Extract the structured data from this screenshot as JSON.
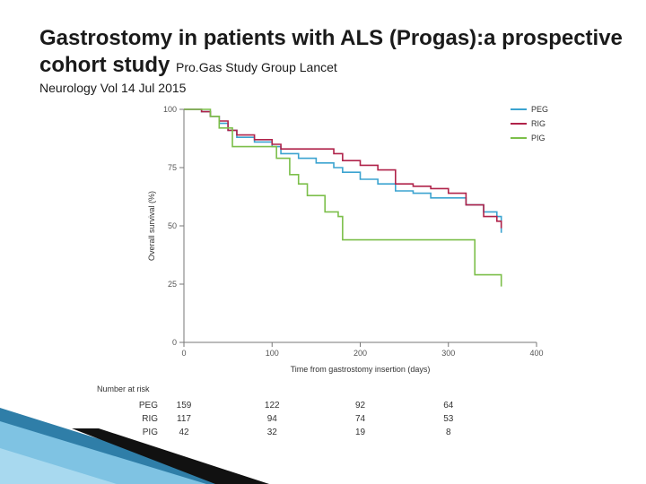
{
  "slide": {
    "title": "Gastrostomy in patients with ALS (Progas):a prospective cohort study",
    "citation_line1": "Pro.Gas Study Group Lancet",
    "citation_line2": "Neurology Vol 14 Jul 2015"
  },
  "chart_data": {
    "type": "line",
    "ylabel": "Overall survival (%)",
    "xlabel": "Time from gastrostomy insertion (days)",
    "xlim": [
      0,
      400
    ],
    "ylim": [
      0,
      100
    ],
    "xticks": [
      0,
      100,
      200,
      300,
      400
    ],
    "yticks": [
      0,
      25,
      50,
      75,
      100
    ],
    "legend_position": "top-right",
    "grid": false,
    "series": [
      {
        "name": "PEG",
        "color": "#3ba3d0",
        "x": [
          0,
          20,
          30,
          40,
          50,
          60,
          80,
          100,
          110,
          130,
          150,
          170,
          180,
          200,
          220,
          240,
          260,
          280,
          300,
          320,
          340,
          355,
          360
        ],
        "y": [
          100,
          99,
          97,
          94,
          91,
          88,
          86,
          84,
          81,
          79,
          77,
          75,
          73,
          70,
          68,
          65,
          64,
          62,
          62,
          59,
          56,
          54,
          47
        ]
      },
      {
        "name": "RIG",
        "color": "#b0234a",
        "x": [
          0,
          20,
          30,
          40,
          50,
          60,
          80,
          100,
          110,
          130,
          150,
          170,
          180,
          200,
          220,
          240,
          260,
          280,
          300,
          320,
          340,
          355,
          360
        ],
        "y": [
          100,
          99,
          97,
          95,
          91,
          89,
          87,
          85,
          83,
          83,
          83,
          81,
          78,
          76,
          74,
          68,
          67,
          66,
          64,
          59,
          54,
          52,
          49
        ]
      },
      {
        "name": "PIG",
        "color": "#7cbf4a",
        "x": [
          0,
          30,
          40,
          55,
          90,
          105,
          120,
          130,
          140,
          160,
          175,
          180,
          200,
          210,
          300,
          330,
          360
        ],
        "y": [
          100,
          97,
          92,
          84,
          84,
          79,
          72,
          68,
          63,
          56,
          54,
          44,
          44,
          44,
          44,
          29,
          24
        ]
      }
    ],
    "number_at_risk": {
      "title": "Number at risk",
      "rows": [
        {
          "label": "PEG",
          "values": [
            "159",
            "122",
            "92",
            "64"
          ]
        },
        {
          "label": "RIG",
          "values": [
            "117",
            "94",
            "74",
            "53"
          ]
        },
        {
          "label": "PIG",
          "values": [
            "42",
            "32",
            "19",
            "8"
          ]
        }
      ]
    }
  }
}
